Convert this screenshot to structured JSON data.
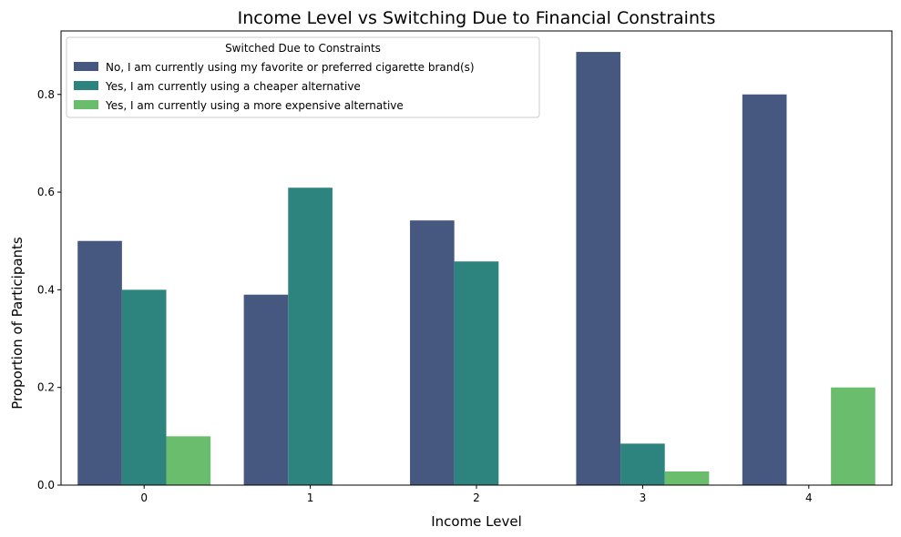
{
  "chart_data": {
    "type": "bar",
    "title": "Income Level vs Switching Due to Financial Constraints",
    "xlabel": "Income Level",
    "ylabel": "Proportion of Participants",
    "categories": [
      "0",
      "1",
      "2",
      "3",
      "4"
    ],
    "ylim": [
      0,
      0.93
    ],
    "yticks": [
      0.0,
      0.2,
      0.4,
      0.6,
      0.8
    ],
    "ytick_labels": [
      "0.0",
      "0.2",
      "0.4",
      "0.6",
      "0.8"
    ],
    "grid": false,
    "legend": {
      "title": "Switched Due to Constraints",
      "placement": "top-left"
    },
    "series": [
      {
        "name": "No, I am currently using my favorite or preferred cigarette brand(s)",
        "color": "#46587f",
        "values": [
          0.5,
          0.39,
          0.542,
          0.887,
          0.8
        ]
      },
      {
        "name": "Yes, I am currently using a cheaper alternative",
        "color": "#2d837d",
        "values": [
          0.4,
          0.609,
          0.458,
          0.085,
          0.0
        ]
      },
      {
        "name": "Yes, I am currently using a more expensive alternative",
        "color": "#6abd6c",
        "values": [
          0.1,
          0.0,
          0.0,
          0.028,
          0.2
        ]
      }
    ]
  }
}
